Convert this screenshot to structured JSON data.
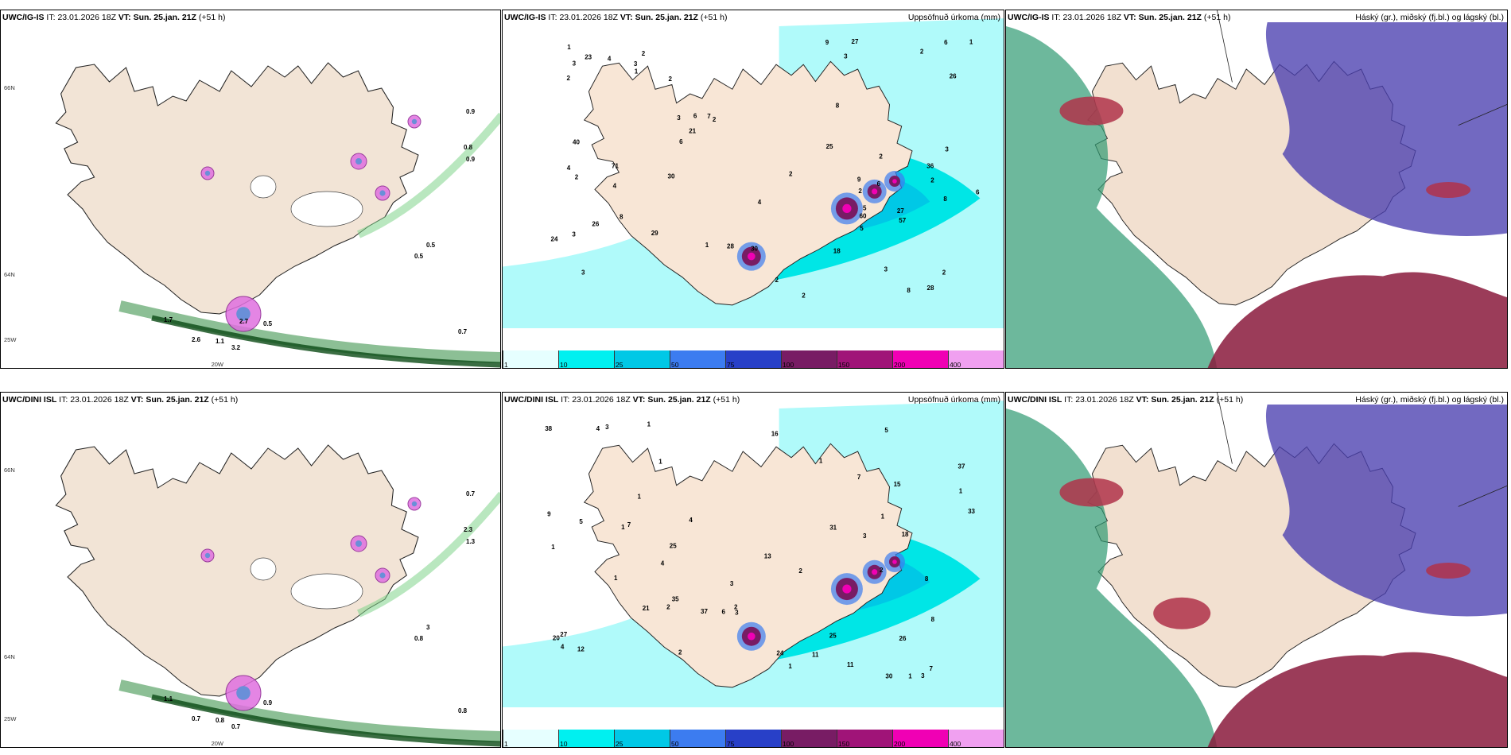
{
  "panels": [
    {
      "id": "p1",
      "model": "UWC/IG-IS",
      "it_label": "IT:",
      "it": "23.01.2026 18Z",
      "vt_label": "VT:",
      "vt": "Sun. 25.jan. 21Z",
      "lead": "(+51 h)",
      "right_title": "",
      "kind": "wind"
    },
    {
      "id": "p2",
      "model": "UWC/IG-IS",
      "it_label": "IT:",
      "it": "23.01.2026 18Z",
      "vt_label": "VT:",
      "vt": "Sun. 25.jan. 21Z",
      "lead": "(+51 h)",
      "right_title": "Uppsöfnuð úrkoma (mm)",
      "kind": "precip"
    },
    {
      "id": "p3",
      "model": "UWC/IG-IS",
      "it_label": "IT:",
      "it": "23.01.2026 18Z",
      "vt_label": "VT:",
      "vt": "Sun. 25.jan. 21Z",
      "lead": "(+51 h)",
      "right_title": "Háský (gr.), miðský (fj.bl.) og lágský (bl.)",
      "kind": "cloud"
    },
    {
      "id": "p4",
      "model": "UWC/DINI ISL",
      "it_label": "IT:",
      "it": "23.01.2026 18Z",
      "vt_label": "VT:",
      "vt": "Sun. 25.jan. 21Z",
      "lead": "(+51 h)",
      "right_title": "",
      "kind": "wind"
    },
    {
      "id": "p5",
      "model": "UWC/DINI ISL",
      "it_label": "IT:",
      "it": "23.01.2026 18Z",
      "vt_label": "VT:",
      "vt": "Sun. 25.jan. 21Z",
      "lead": "(+51 h)",
      "right_title": "Uppsöfnuð úrkoma (mm)",
      "kind": "precip"
    },
    {
      "id": "p6",
      "model": "UWC/DINI ISL",
      "it_label": "IT:",
      "it": "23.01.2026 18Z",
      "vt_label": "VT:",
      "vt": "Sun. 25.jan. 21Z",
      "lead": "(+51 h)",
      "right_title": "Háský (gr.), miðský (fj.bl.) og lágský (bl.)",
      "kind": "cloud"
    }
  ],
  "colorbar": {
    "ticks": [
      "1",
      "10",
      "25",
      "50",
      "75",
      "100",
      "150",
      "200",
      "400"
    ],
    "colors": [
      "#e6ffff",
      "#00f0f0",
      "#00c8e6",
      "#3c7cf0",
      "#2840c8",
      "#781c64",
      "#a01478",
      "#f000b4",
      "#f0a0f0"
    ]
  },
  "lat_labels_top": [
    "66N",
    "64N",
    "25W",
    "20W"
  ],
  "lat_labels_bottom": [
    "66N",
    "64N",
    "25W",
    "20W"
  ],
  "wind_labels_top": [
    "0.9",
    "0.8",
    "0.9",
    "0.5",
    "0.5",
    "0.7",
    "0.5",
    "2.6",
    "1.1",
    "3.2",
    "1.7",
    "2.7"
  ],
  "wind_labels_bottom": [
    "0.7",
    "2.3",
    "1.3",
    "3",
    "0.8",
    "0.8",
    "0.9",
    "0.7",
    "0.8",
    "0.7",
    "1.1"
  ],
  "precip_labels_top": [
    "2",
    "2",
    "3",
    "2",
    "2",
    "3",
    "3",
    "3",
    "3",
    "2",
    "2",
    "4",
    "3",
    "2",
    "1",
    "3",
    "4",
    "2",
    "7",
    "8",
    "1",
    "2",
    "6",
    "8",
    "9",
    "3",
    "5",
    "2",
    "1",
    "2",
    "2",
    "18",
    "21",
    "30",
    "36",
    "57",
    "60",
    "71",
    "30",
    "26",
    "26",
    "27",
    "28",
    "28",
    "27",
    "29",
    "24",
    "23",
    "25",
    "40",
    "6",
    "6",
    "6",
    "9",
    "5",
    "8",
    "8",
    "1",
    "4",
    "4",
    "6",
    "2"
  ],
  "precip_labels_bottom": [
    "3",
    "1",
    "4",
    "2",
    "3",
    "1",
    "6",
    "4",
    "2",
    "3",
    "18",
    "16",
    "38",
    "30",
    "25",
    "25",
    "13",
    "33",
    "37",
    "4",
    "1",
    "7",
    "11",
    "21",
    "26",
    "31",
    "24",
    "27",
    "15",
    "20",
    "35",
    "37",
    "12",
    "8",
    "7",
    "9",
    "5",
    "3",
    "1",
    "2",
    "1",
    "7",
    "8",
    "11",
    "3",
    "4",
    "2",
    "1",
    "1",
    "1",
    "1",
    "1",
    "2",
    "5",
    "1"
  ]
}
